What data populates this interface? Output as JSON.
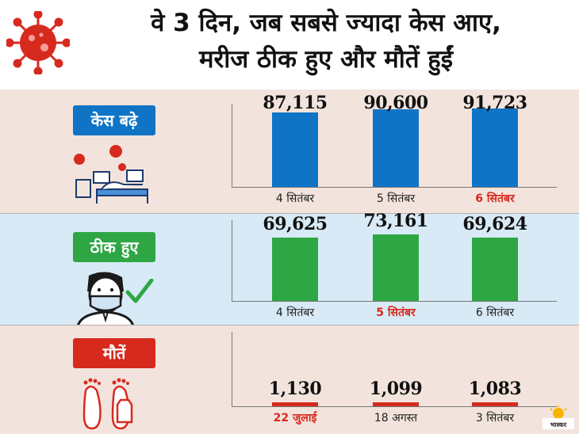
{
  "title": {
    "line1": "वे 3 दिन, जब सबसे ज्यादा केस आए,",
    "line2": "मरीज ठीक हुए और मौतें हुईं"
  },
  "colors": {
    "cases": "#0f74c6",
    "recovered": "#2ea644",
    "deaths": "#d72a1f",
    "highlight": "#d72a1f"
  },
  "icons": [
    "virus-icon",
    "hospital-bed-icon",
    "masked-person-icon",
    "check-icon",
    "feet-tag-icon",
    "logo-icon"
  ],
  "chart_data": [
    {
      "type": "bar",
      "title": "केस बढ़े",
      "categories": [
        "4 सितंबर",
        "5 सितंबर",
        "6 सितंबर"
      ],
      "values": [
        87115,
        90600,
        91723
      ],
      "value_labels": [
        "87,115",
        "90,600",
        "91,723"
      ],
      "highlight_index": 2,
      "ylim": [
        0,
        100000
      ]
    },
    {
      "type": "bar",
      "title": "ठीक हुए",
      "categories": [
        "4 सितंबर",
        "5 सितंबर",
        "6 सितंबर"
      ],
      "values": [
        69625,
        73161,
        69624
      ],
      "value_labels": [
        "69,625",
        "73,161",
        "69,624"
      ],
      "highlight_index": 1,
      "ylim": [
        0,
        80000
      ]
    },
    {
      "type": "bar",
      "title": "मौतें",
      "categories": [
        "22 जुलाई",
        "18 अगस्त",
        "3 सितंबर"
      ],
      "values": [
        1130,
        1099,
        1083
      ],
      "value_labels": [
        "1,130",
        "1,099",
        "1,083"
      ],
      "highlight_index": 0,
      "ylim": [
        0,
        16000
      ]
    }
  ]
}
